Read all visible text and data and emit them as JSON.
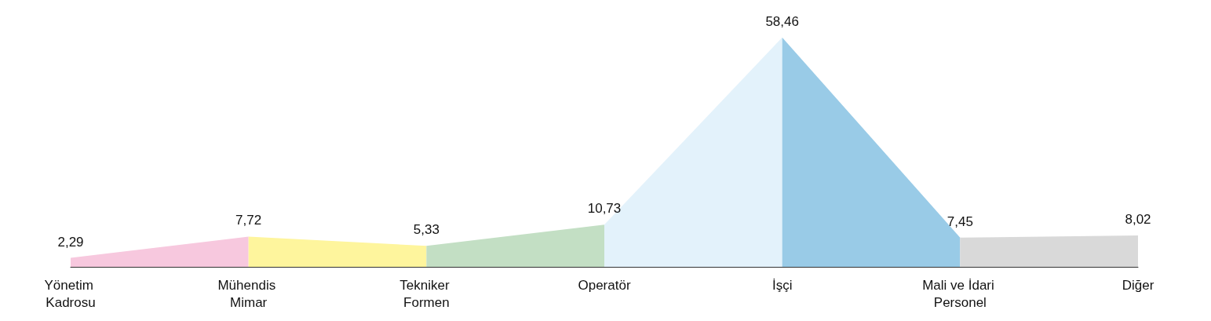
{
  "chart_data": {
    "type": "area",
    "categories": [
      "Yönetim Kadrosu",
      "Mühendis Mimar",
      "Tekniker Formen",
      "Operatör",
      "İşçi",
      "Mali ve İdari Personel",
      "Diğer"
    ],
    "series": [
      {
        "color": "#f7c8de",
        "x": [
          "Yönetim Kadrosu",
          "Mühendis Mimar"
        ],
        "values": [
          2.29,
          7.72
        ],
        "value_labels": [
          "2,29",
          null
        ]
      },
      {
        "color": "#fef59d",
        "x": [
          "Mühendis Mimar",
          "Tekniker Formen"
        ],
        "values": [
          7.72,
          5.33
        ],
        "value_labels": [
          "7,72",
          null
        ]
      },
      {
        "color": "#c3dfc4",
        "x": [
          "Tekniker Formen",
          "Operatör"
        ],
        "values": [
          5.33,
          10.73
        ],
        "value_labels": [
          "5,33",
          null
        ]
      },
      {
        "color": "#e3f2fb",
        "x": [
          "Operatör",
          "İşçi"
        ],
        "values": [
          10.73,
          58.46
        ],
        "value_labels": [
          "10,73",
          null
        ]
      },
      {
        "color": "#99cbe7",
        "x": [
          "İşçi",
          "Mali ve İdari Personel"
        ],
        "values": [
          58.46,
          7.45
        ],
        "value_labels": [
          "58,46",
          null
        ]
      },
      {
        "color": "#d9d9d9",
        "x": [
          "Mali ve İdari Personel",
          "Diğer"
        ],
        "values": [
          7.45,
          8.02
        ],
        "value_labels": [
          "7,45",
          "8,02"
        ]
      }
    ],
    "grid": false
  }
}
